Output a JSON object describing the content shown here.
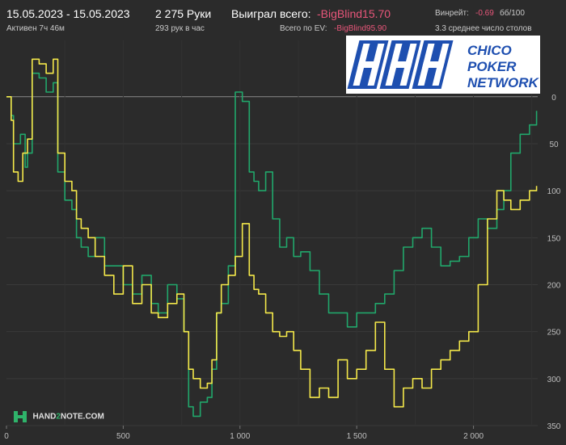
{
  "header": {
    "date_range": "15.05.2023 - 15.05.2023",
    "active_time": "Активен 7ч 46м",
    "hands": "2 275 Руки",
    "hands_per_hour": "293 рук в час",
    "won_total_label": "Выиграл всего:",
    "won_total_value": "-BigBlind15.70",
    "ev_total_label": "Всего по EV:",
    "ev_total_value": "-BigBlind95.90",
    "winrate_label": "Винрейт:",
    "winrate_value": "-0.69",
    "winrate_unit": "бб/100",
    "avg_tables": "3.3 среднее число столов"
  },
  "logo": {
    "text_line1": "CHICO",
    "text_line2": "POKER",
    "text_line3": "NETWORK",
    "colors": {
      "blue": "#1e4fb0",
      "white": "#ffffff"
    }
  },
  "watermark": {
    "text_left": "HAND",
    "text_mid": "2",
    "text_right": "NOTE.COM",
    "icon": "h2n-logo-icon"
  },
  "chart_data": {
    "type": "line",
    "x_ticks": [
      "0",
      "500",
      "1 000",
      "1 500",
      "2 000"
    ],
    "y_ticks": [
      "0",
      "50",
      "100",
      "150",
      "200",
      "250",
      "300",
      "350"
    ],
    "xlim": [
      0,
      2275
    ],
    "ylim_inverted": [
      -60,
      350
    ],
    "series": [
      {
        "color": "#21a76b",
        "x": [
          0,
          20,
          30,
          60,
          80,
          90,
          110,
          140,
          170,
          200,
          220,
          250,
          280,
          300,
          320,
          350,
          380,
          420,
          460,
          500,
          540,
          580,
          620,
          650,
          690,
          730,
          760,
          780,
          800,
          830,
          860,
          880,
          900,
          920,
          950,
          980,
          1010,
          1040,
          1060,
          1080,
          1110,
          1140,
          1170,
          1200,
          1230,
          1260,
          1300,
          1340,
          1380,
          1420,
          1460,
          1500,
          1540,
          1580,
          1620,
          1660,
          1700,
          1740,
          1780,
          1820,
          1860,
          1900,
          1940,
          1980,
          2020,
          2060,
          2100,
          2130,
          2160,
          2200,
          2240,
          2270
        ],
        "y": [
          0,
          20,
          50,
          40,
          75,
          60,
          -25,
          -20,
          -5,
          -15,
          80,
          110,
          120,
          150,
          160,
          170,
          150,
          180,
          180,
          200,
          210,
          190,
          220,
          230,
          200,
          215,
          250,
          330,
          340,
          325,
          320,
          290,
          230,
          220,
          180,
          -5,
          5,
          80,
          90,
          100,
          80,
          130,
          160,
          150,
          170,
          165,
          185,
          210,
          230,
          230,
          245,
          230,
          230,
          220,
          210,
          185,
          160,
          150,
          140,
          160,
          180,
          175,
          170,
          150,
          130,
          140,
          120,
          100,
          60,
          40,
          30,
          15
        ]
      },
      {
        "color": "#f4e84a",
        "x": [
          0,
          20,
          30,
          50,
          70,
          90,
          110,
          140,
          170,
          200,
          220,
          250,
          280,
          300,
          320,
          350,
          380,
          420,
          460,
          500,
          540,
          580,
          620,
          650,
          690,
          730,
          760,
          780,
          800,
          830,
          860,
          880,
          900,
          920,
          950,
          980,
          1010,
          1040,
          1060,
          1080,
          1110,
          1140,
          1170,
          1200,
          1230,
          1260,
          1300,
          1340,
          1380,
          1420,
          1460,
          1500,
          1540,
          1580,
          1620,
          1660,
          1700,
          1740,
          1780,
          1820,
          1860,
          1900,
          1940,
          1980,
          2020,
          2060,
          2100,
          2130,
          2160,
          2200,
          2240,
          2270
        ],
        "y": [
          0,
          25,
          80,
          90,
          60,
          45,
          -40,
          -35,
          -25,
          -40,
          60,
          90,
          100,
          130,
          140,
          150,
          170,
          190,
          210,
          180,
          220,
          200,
          230,
          235,
          220,
          210,
          250,
          290,
          300,
          310,
          305,
          280,
          230,
          200,
          190,
          170,
          135,
          190,
          205,
          210,
          230,
          250,
          255,
          250,
          270,
          290,
          320,
          310,
          320,
          280,
          300,
          290,
          270,
          240,
          290,
          330,
          310,
          300,
          310,
          290,
          280,
          270,
          260,
          250,
          200,
          130,
          100,
          110,
          120,
          110,
          100,
          95
        ]
      }
    ]
  }
}
